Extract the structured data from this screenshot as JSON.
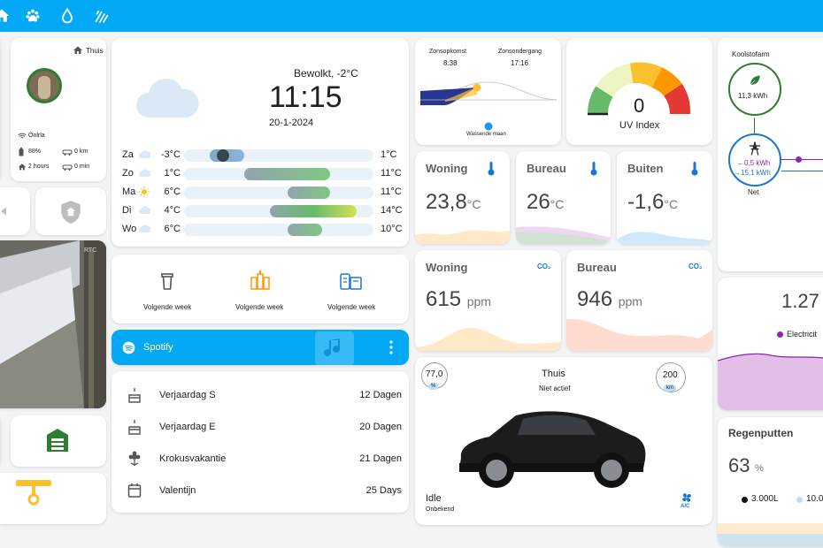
{
  "colors": {
    "accent": "#03a9f4",
    "green": "#2e7d32",
    "orange": "#ff9800",
    "yellow": "#fbc02d",
    "uv_red": "#e53935"
  },
  "topbar": {
    "icons": [
      "home-icon",
      "paw-icon",
      "water-drop-icon",
      "weather-rainy-icon"
    ]
  },
  "person": {
    "location": "Thuis",
    "wifi": "Onlrla",
    "battery": "88%",
    "distance": "0 km",
    "time_home": "2 hours",
    "time_away": "0 min"
  },
  "weather": {
    "condition": "Bewolkt, -2°C",
    "time": "11:15",
    "date": "20-1-2024",
    "forecast": [
      {
        "day": "Za",
        "low": "-3°C",
        "high": "1°C",
        "icon": "cloud-icon",
        "lo_val": -3,
        "hi_val": 1
      },
      {
        "day": "Zo",
        "low": "1°C",
        "high": "11°C",
        "icon": "cloud-icon",
        "lo_val": 1,
        "hi_val": 11
      },
      {
        "day": "Ma",
        "low": "6°C",
        "high": "11°C",
        "icon": "sun-icon",
        "lo_val": 6,
        "hi_val": 11
      },
      {
        "day": "Di",
        "low": "4°C",
        "high": "14°C",
        "icon": "cloud-icon",
        "lo_val": 4,
        "hi_val": 14
      },
      {
        "day": "Wo",
        "low": "6°C",
        "high": "10°C",
        "icon": "cloud-icon",
        "lo_val": 6,
        "hi_val": 10
      }
    ]
  },
  "sun": {
    "rise_label": "Zonsopkomst",
    "rise_time": "8:38",
    "set_label": "Zonsondergang",
    "set_time": "17:16",
    "moon": "Wassende maan"
  },
  "uv": {
    "value": "0",
    "label": "UV Index",
    "level": 0.0
  },
  "temps": [
    {
      "name": "Woning",
      "value": "23,8",
      "unit": "°C"
    },
    {
      "name": "Bureau",
      "value": "26",
      "unit": "°C"
    },
    {
      "name": "Buiten",
      "value": "-1,6",
      "unit": "°C"
    }
  ],
  "co2": [
    {
      "name": "Woning",
      "value": "615",
      "unit": "ppm",
      "badge": "CO₂"
    },
    {
      "name": "Bureau",
      "value": "946",
      "unit": "ppm",
      "badge": "CO₂"
    }
  ],
  "energy": {
    "farm_label": "Koolstofarm",
    "farm_value": "11,3 kWh",
    "net_in": "←0,5 kWh",
    "net_out": "→15,1 kWh",
    "net_label": "Net",
    "price": "1.27",
    "price_label": "Electricit"
  },
  "bins": [
    {
      "label": "Volgende week",
      "icon": "trash-bin-icon"
    },
    {
      "label": "Volgende week",
      "icon": "recycle-bottles-icon"
    },
    {
      "label": "Volgende week",
      "icon": "paper-bin-icon"
    }
  ],
  "spotify": {
    "label": "Spotify"
  },
  "events": [
    {
      "label": "Verjaardag S",
      "days": "12 Dagen",
      "icon": "cake-icon"
    },
    {
      "label": "Verjaardag E",
      "days": "20 Dagen",
      "icon": "cake-icon"
    },
    {
      "label": "Krokusvakantie",
      "days": "21 Dagen",
      "icon": "flower-icon"
    },
    {
      "label": "Valentijn",
      "days": "25 Days",
      "icon": "calendar-icon"
    }
  ],
  "car": {
    "location": "Thuis",
    "status": "Niet actief",
    "battery": "77,0",
    "battery_unit": "%",
    "range": "200",
    "range_unit": "km",
    "state": "Idle",
    "state_sub": "Onbekend",
    "ac": "A/C"
  },
  "rain": {
    "title": "Regenputten",
    "value": "63",
    "unit": "%",
    "legend1": "3.000L",
    "legend2": "10.0"
  }
}
